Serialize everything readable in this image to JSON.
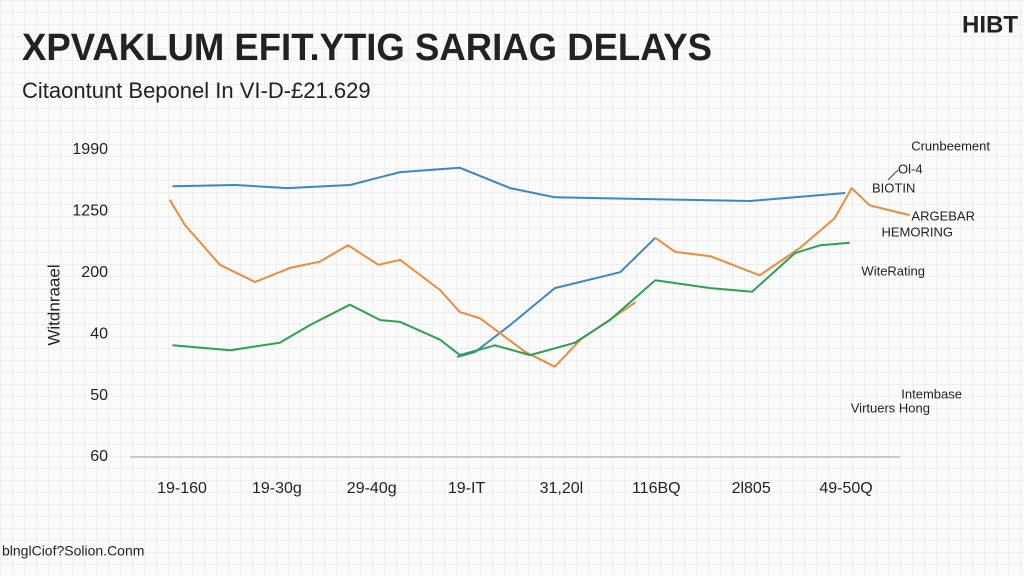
{
  "chart_data": {
    "type": "line",
    "title": "XPVAKLUM EFIT.YTIG SARIAG DELAYS",
    "subtitle": "Citaontunt Beponel In VI-D-£21.629",
    "brand": "HIBT",
    "y_label": "Witdnraael",
    "footer": "blnglCiof?Solion.Conm",
    "xlim": [
      0,
      7
    ],
    "xticks": [
      {
        "value": 0,
        "label": "19-160"
      },
      {
        "value": 1,
        "label": "19-30g"
      },
      {
        "value": 2,
        "label": "29-40g"
      },
      {
        "value": 3,
        "label": "19-IT"
      },
      {
        "value": 4,
        "label": "31,20l"
      },
      {
        "value": 5,
        "label": "116BQ"
      },
      {
        "value": 6,
        "label": "2l805"
      },
      {
        "value": 7,
        "label": "49-50Q"
      }
    ],
    "ylim": [
      0,
      5
    ],
    "yticks": [
      {
        "value": 5,
        "label": "1990"
      },
      {
        "value": 4,
        "label": "1250"
      },
      {
        "value": 3,
        "label": "200"
      },
      {
        "value": 2,
        "label": "40"
      },
      {
        "value": 1,
        "label": "50"
      },
      {
        "value": 0,
        "label": "60"
      }
    ],
    "series": [
      {
        "color": "#3a86c8",
        "x": [
          -0.1,
          0.56,
          1.11,
          1.77,
          2.3,
          2.93,
          3.46,
          3.93,
          4.93,
          5.99,
          6.99,
          null,
          2.9,
          3.09,
          3.46,
          3.93,
          4.62,
          4.99
        ],
        "values": [
          4.41,
          4.43,
          4.38,
          4.43,
          4.64,
          4.71,
          4.38,
          4.23,
          4.2,
          4.17,
          4.3,
          null,
          1.63,
          1.71,
          2.15,
          2.75,
          3.01,
          3.57
        ]
      },
      {
        "color": "#ee8a3c",
        "x": [
          -0.13,
          0.03,
          0.4,
          0.77,
          1.14,
          1.45,
          1.75,
          2.07,
          2.3,
          2.72,
          2.93,
          3.14,
          3.62,
          3.93,
          4.2,
          4.78,
          null,
          4.99,
          5.2,
          5.57,
          6.09,
          6.51,
          6.88,
          7.06,
          7.25,
          7.67
        ],
        "values": [
          4.19,
          3.78,
          3.13,
          2.85,
          3.08,
          3.18,
          3.45,
          3.13,
          3.21,
          2.72,
          2.36,
          2.26,
          1.71,
          1.47,
          1.91,
          2.52,
          null,
          3.57,
          3.34,
          3.27,
          2.96,
          3.4,
          3.89,
          4.38,
          4.1,
          3.94
        ]
      },
      {
        "color": "#2ea055",
        "x": [
          -0.1,
          0.51,
          1.03,
          1.35,
          1.77,
          2.09,
          2.3,
          2.72,
          2.93,
          3.3,
          3.67,
          4.14,
          4.51,
          4.99,
          5.57,
          6.01,
          6.46,
          6.73,
          7.04
        ],
        "values": [
          1.82,
          1.74,
          1.86,
          2.15,
          2.48,
          2.23,
          2.2,
          1.91,
          1.66,
          1.82,
          1.66,
          1.86,
          2.23,
          2.88,
          2.75,
          2.69,
          3.32,
          3.45,
          3.49
        ]
      }
    ],
    "annotations": [
      {
        "text": "Crunbeement",
        "color": "#444444"
      },
      {
        "text": "Ol-4",
        "color": "#222222"
      },
      {
        "text": "BIOTIN",
        "color": "#ee8a3c"
      },
      {
        "text": "ARGEBAR",
        "color": "#ee8a3c"
      },
      {
        "text": "HEMORING",
        "color": "#2ea055"
      },
      {
        "text": "WiteRating",
        "color": "#2ea055"
      },
      {
        "text": "Intembase",
        "color": "#555555"
      },
      {
        "text": "Virtuers Hong",
        "color": "#555555"
      }
    ]
  }
}
